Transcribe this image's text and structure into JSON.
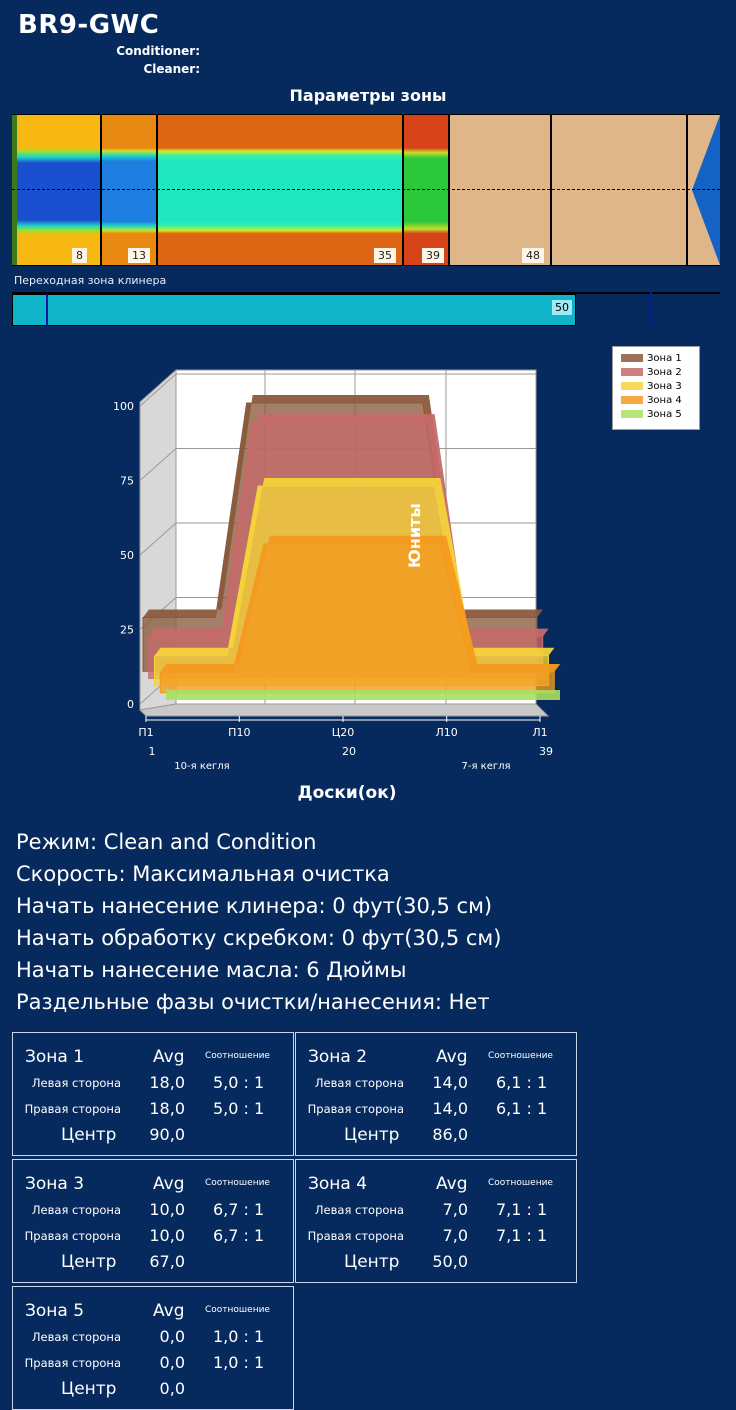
{
  "header": {
    "title": "BR9-GWC",
    "conditioner_label": "Conditioner:",
    "cleaner_label": "Cleaner:"
  },
  "zone_params_title": "Параметры зоны",
  "lane_markers": [
    "8",
    "13",
    "35",
    "39",
    "48"
  ],
  "transition": {
    "label": "Переходная зона клинера",
    "value": "50"
  },
  "chart_data": {
    "type": "area",
    "title": "",
    "xlabel": "Доски(ок)",
    "ylabel": "Юниты",
    "ylim": [
      0,
      100
    ],
    "yticks": [
      "0",
      "25",
      "50",
      "75",
      "100"
    ],
    "x_tick_labels": [
      "П1",
      "П10",
      "Ц20",
      "Л10",
      "Л1"
    ],
    "x_tick_numbers": [
      "1",
      "",
      "20",
      "",
      "39"
    ],
    "x_sub_labels": [
      "10-я кегля",
      "7-я кегля"
    ],
    "x": [
      1,
      10,
      20,
      30,
      39
    ],
    "legend_position": "top-right",
    "series": [
      {
        "name": "Зона 1",
        "color": "#8b5a3c",
        "values": [
          18,
          18,
          90,
          18,
          18
        ]
      },
      {
        "name": "Зона 2",
        "color": "#c66a6a",
        "values": [
          14,
          14,
          86,
          14,
          14
        ]
      },
      {
        "name": "Зона 3",
        "color": "#f4d33a",
        "values": [
          10,
          10,
          67,
          10,
          10
        ]
      },
      {
        "name": "Зона 4",
        "color": "#f39a1e",
        "values": [
          7,
          7,
          50,
          7,
          7
        ]
      },
      {
        "name": "Зона 5",
        "color": "#a9e060",
        "values": [
          0,
          0,
          0,
          0,
          0
        ]
      }
    ]
  },
  "info": {
    "mode": "Режим: Clean and Condition",
    "speed": "Скорость: Максимальная очистка",
    "cleaner_start": "Начать нанесение клинера: 0 фут(30,5 см)",
    "squeegee_start": "Начать обработку скребком: 0 фут(30,5 см)",
    "oil_start": "Начать нанесение масла: 6 Дюймы",
    "separate": "Раздельные фазы очистки/нанесения: Нет"
  },
  "zone_table_labels": {
    "avg": "Avg",
    "ratio": "Соотношение",
    "left": "Левая сторона",
    "right": "Правая сторона",
    "center": "Центр"
  },
  "zones": [
    {
      "name": "Зона 1",
      "left": "18,0",
      "left_ratio": "5,0 : 1",
      "right": "18,0",
      "right_ratio": "5,0 : 1",
      "center": "90,0"
    },
    {
      "name": "Зона 2",
      "left": "14,0",
      "left_ratio": "6,1 : 1",
      "right": "14,0",
      "right_ratio": "6,1 : 1",
      "center": "86,0"
    },
    {
      "name": "Зона 3",
      "left": "10,0",
      "left_ratio": "6,7 : 1",
      "right": "10,0",
      "right_ratio": "6,7 : 1",
      "center": "67,0"
    },
    {
      "name": "Зона 4",
      "left": "7,0",
      "left_ratio": "7,1 : 1",
      "right": "7,0",
      "right_ratio": "7,1 : 1",
      "center": "50,0"
    },
    {
      "name": "Зона 5",
      "left": "0,0",
      "left_ratio": "1,0 : 1",
      "right": "0,0",
      "right_ratio": "1,0 : 1",
      "center": "0,0"
    }
  ]
}
